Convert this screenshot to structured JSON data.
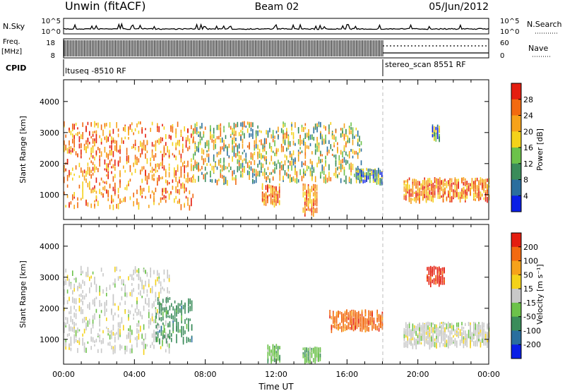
{
  "header": {
    "station": "Unwin (fitACF)",
    "beam": "Beam 02",
    "date": "05/Jun/2012"
  },
  "summary": {
    "nsky_label": "N.Sky",
    "nsky_ticks": [
      "10^5",
      "10^0"
    ],
    "nsearch_label": "N.Search",
    "nsearch_ticks": [
      "10^5",
      "10^0"
    ],
    "freq_label_line1": "Freq.",
    "freq_label_line2": "[MHz]",
    "freq_ticks": [
      "18",
      "8"
    ],
    "nave_label": "Nave",
    "nave_ticks": [
      "60",
      "0"
    ],
    "cpid_label": "CPID",
    "cpid_segments": [
      {
        "name": "ltuseq -8510 RF",
        "start_hour": 0,
        "end_hour": 18
      },
      {
        "name": "stereo_scan 8551 RF",
        "start_hour": 18,
        "end_hour": 24
      }
    ]
  },
  "colors": {
    "power_scale": [
      "#0a1ee6",
      "#2a6e9e",
      "#3a8c5a",
      "#6cc24a",
      "#f4d21a",
      "#f6a21a",
      "#f26a10",
      "#e41e10"
    ],
    "velocity_scale": [
      "#e41e10",
      "#f26a10",
      "#f6a21a",
      "#f4d21a",
      "#c8c8c8",
      "#6cc24a",
      "#3a8c5a",
      "#2a6e9e",
      "#0a1ee6"
    ],
    "mode_change_line": "#bbbbbb"
  },
  "chart_data": [
    {
      "type": "heatmap",
      "name": "power",
      "ylabel": "Slant Range [km]",
      "xlabel": "Time UT",
      "xlim_hours": [
        0,
        24
      ],
      "ylim": [
        200,
        4700
      ],
      "y_ticks": [
        1000,
        2000,
        3000,
        4000
      ],
      "x_tick_labels": [
        "00:00",
        "04:00",
        "08:00",
        "12:00",
        "16:00",
        "20:00",
        "00:00"
      ],
      "colorbar": {
        "label": "Power [dB]",
        "ticks": [
          "4",
          "8",
          "12",
          "16",
          "20",
          "24",
          "28"
        ],
        "range": [
          0,
          30
        ]
      },
      "regions": [
        {
          "t": [
            0.0,
            7.3
          ],
          "r": [
            600,
            3300
          ],
          "level": "high"
        },
        {
          "t": [
            7.3,
            16.8
          ],
          "r": [
            1400,
            3300
          ],
          "level": "medium"
        },
        {
          "t": [
            11.2,
            12.2
          ],
          "r": [
            700,
            1300
          ],
          "level": "high"
        },
        {
          "t": [
            13.5,
            14.3
          ],
          "r": [
            400,
            1300
          ],
          "level": "high"
        },
        {
          "t": [
            16.5,
            18.0
          ],
          "r": [
            1400,
            1800
          ],
          "level": "low"
        },
        {
          "t": [
            19.2,
            24.0
          ],
          "r": [
            800,
            1500
          ],
          "level": "high"
        },
        {
          "t": [
            20.8,
            21.2
          ],
          "r": [
            2800,
            3200
          ],
          "level": "low"
        }
      ]
    },
    {
      "type": "heatmap",
      "name": "velocity",
      "ylabel": "Slant Range [km]",
      "xlabel": "Time UT",
      "xlim_hours": [
        0,
        24
      ],
      "ylim": [
        200,
        4700
      ],
      "y_ticks": [
        1000,
        2000,
        3000,
        4000
      ],
      "x_tick_labels": [
        "00:00",
        "04:00",
        "08:00",
        "12:00",
        "16:00",
        "20:00",
        "00:00"
      ],
      "colorbar": {
        "label": "Velocity [m s⁻¹]",
        "ticks": [
          "200",
          "100",
          "50",
          "15",
          "-15",
          "-50",
          "-100",
          "-200"
        ],
        "range": [
          -250,
          250
        ]
      },
      "regions": [
        {
          "t": [
            0.0,
            6.0
          ],
          "r": [
            600,
            3300
          ],
          "value": 0
        },
        {
          "t": [
            5.2,
            7.3
          ],
          "r": [
            900,
            2300
          ],
          "value": -150
        },
        {
          "t": [
            11.5,
            12.2
          ],
          "r": [
            300,
            800
          ],
          "value": -60
        },
        {
          "t": [
            13.5,
            14.5
          ],
          "r": [
            300,
            700
          ],
          "value": -80
        },
        {
          "t": [
            15.0,
            18.0
          ],
          "r": [
            1300,
            1900
          ],
          "value": 180
        },
        {
          "t": [
            20.5,
            21.5
          ],
          "r": [
            2800,
            3300
          ],
          "value": 220
        },
        {
          "t": [
            19.2,
            24.0
          ],
          "r": [
            800,
            1500
          ],
          "value": 0
        }
      ]
    }
  ]
}
